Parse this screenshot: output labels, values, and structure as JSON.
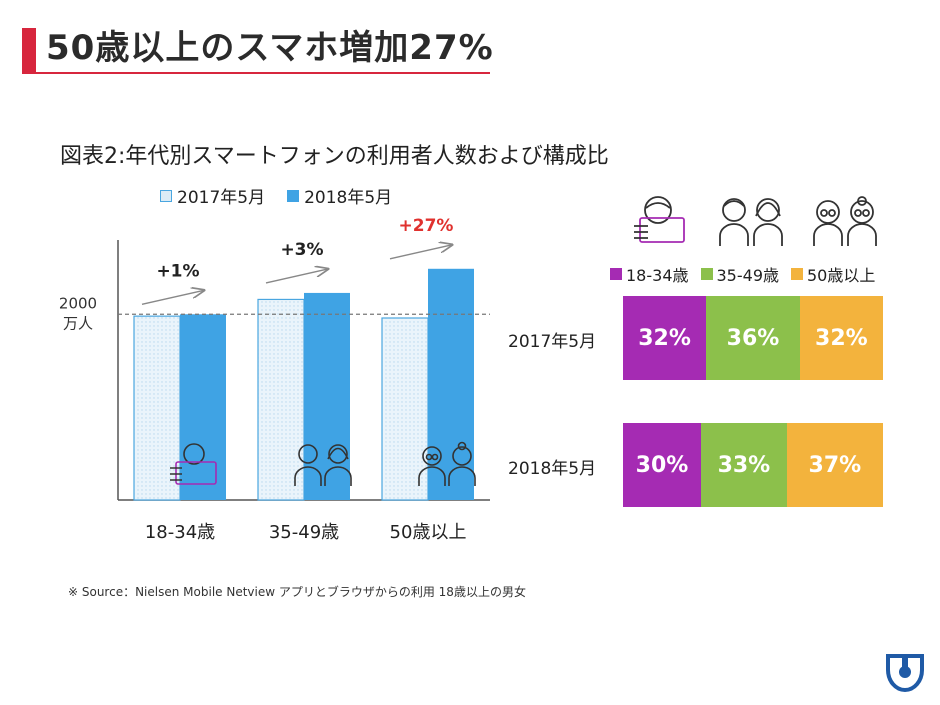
{
  "slide": {
    "title": "50歳以上のスマホ増加27%",
    "figure_title": "図表2:年代別スマートフォンの利用者人数および構成比",
    "source": "※ Source：Nielsen Mobile Netview アプリとブラウザからの利用 18歳以上の男女"
  },
  "colors": {
    "accent": "#d7263d",
    "bar_2017_fill": "#dcecf6",
    "bar_2017_border": "#4aa6e0",
    "bar_2018": "#3fa3e4",
    "purple": "#a52bb3",
    "green": "#8cc04b",
    "orange": "#f3b33d",
    "red_text": "#e0312e"
  },
  "chart_data": [
    {
      "type": "bar",
      "categories": [
        "18-34歳",
        "35-49歳",
        "50歳以上"
      ],
      "series": [
        {
          "name": "2017年5月",
          "values": [
            1980,
            2160,
            1960
          ]
        },
        {
          "name": "2018年5月",
          "values": [
            2000,
            2230,
            2490
          ]
        }
      ],
      "reference_line": {
        "value": 2000,
        "label_line1": "2000",
        "label_line2": "万人"
      },
      "deltas": [
        "+1%",
        "+3%",
        "+27%"
      ],
      "ylim": [
        0,
        2800
      ],
      "legend": "top"
    },
    {
      "type": "bar",
      "stacked": true,
      "normalized": true,
      "categories": [
        "2017年5月",
        "2018年5月"
      ],
      "series": [
        {
          "name": "18-34歳",
          "values": [
            32,
            30
          ]
        },
        {
          "name": "35-49歳",
          "values": [
            36,
            33
          ]
        },
        {
          "name": "50歳以上",
          "values": [
            32,
            37
          ]
        }
      ],
      "value_labels": [
        [
          "32%",
          "36%",
          "32%"
        ],
        [
          "30%",
          "33%",
          "37%"
        ]
      ],
      "legend": "top"
    }
  ],
  "icons": {
    "group1": "young-person-with-phone-icon",
    "group2": "adult-couple-icon",
    "group3": "senior-couple-icon",
    "logo": "company-logo-icon"
  }
}
